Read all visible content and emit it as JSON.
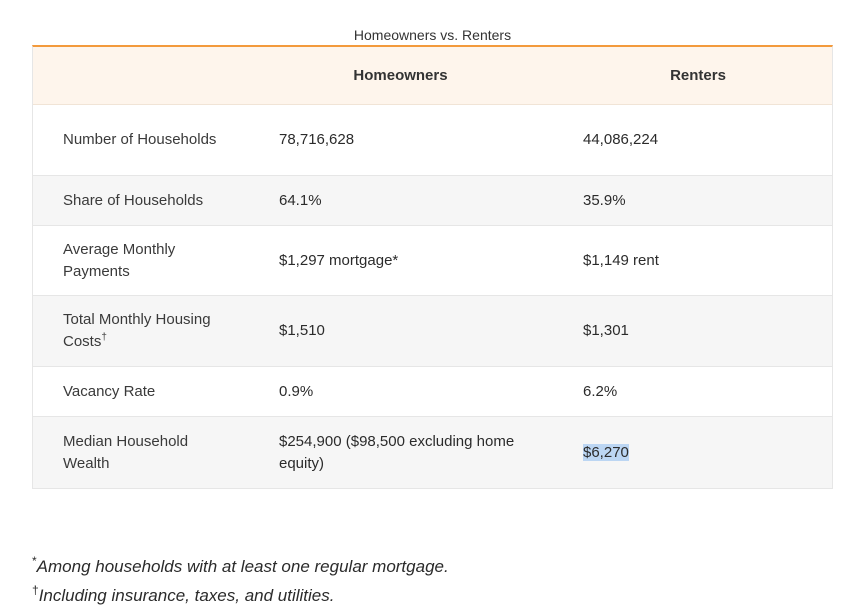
{
  "caption": "Homeowners vs. Renters",
  "columns": {
    "blank": "",
    "homeowners": "Homeowners",
    "renters": "Renters"
  },
  "rows": [
    {
      "label": "Number of Households",
      "homeowners": "78,716,628",
      "renters": "44,086,224"
    },
    {
      "label": "Share of Households",
      "homeowners": "64.1%",
      "renters": "35.9%"
    },
    {
      "label": "Average Monthly Payments",
      "homeowners": "$1,297 mortgage*",
      "renters": "$1,149 rent"
    },
    {
      "label": "Total Monthly Housing Costs",
      "label_mark": "†",
      "homeowners": "$1,510",
      "renters": "$1,301"
    },
    {
      "label": "Vacancy Rate",
      "homeowners": "0.9%",
      "renters": "6.2%"
    },
    {
      "label": "Median Household Wealth",
      "homeowners": "$254,900 ($98,500 excluding home equity)",
      "renters": "$6,270"
    }
  ],
  "footnotes": [
    {
      "mark": "*",
      "text": "Among households with at least one regular mortgage."
    },
    {
      "mark": "†",
      "text": "Including insurance, taxes, and utilities."
    }
  ],
  "colors": {
    "header_background": "#fef5ec",
    "header_rule": "#f39a3c",
    "stripe": "#f6f6f6",
    "selection": "#bcd6f3"
  }
}
